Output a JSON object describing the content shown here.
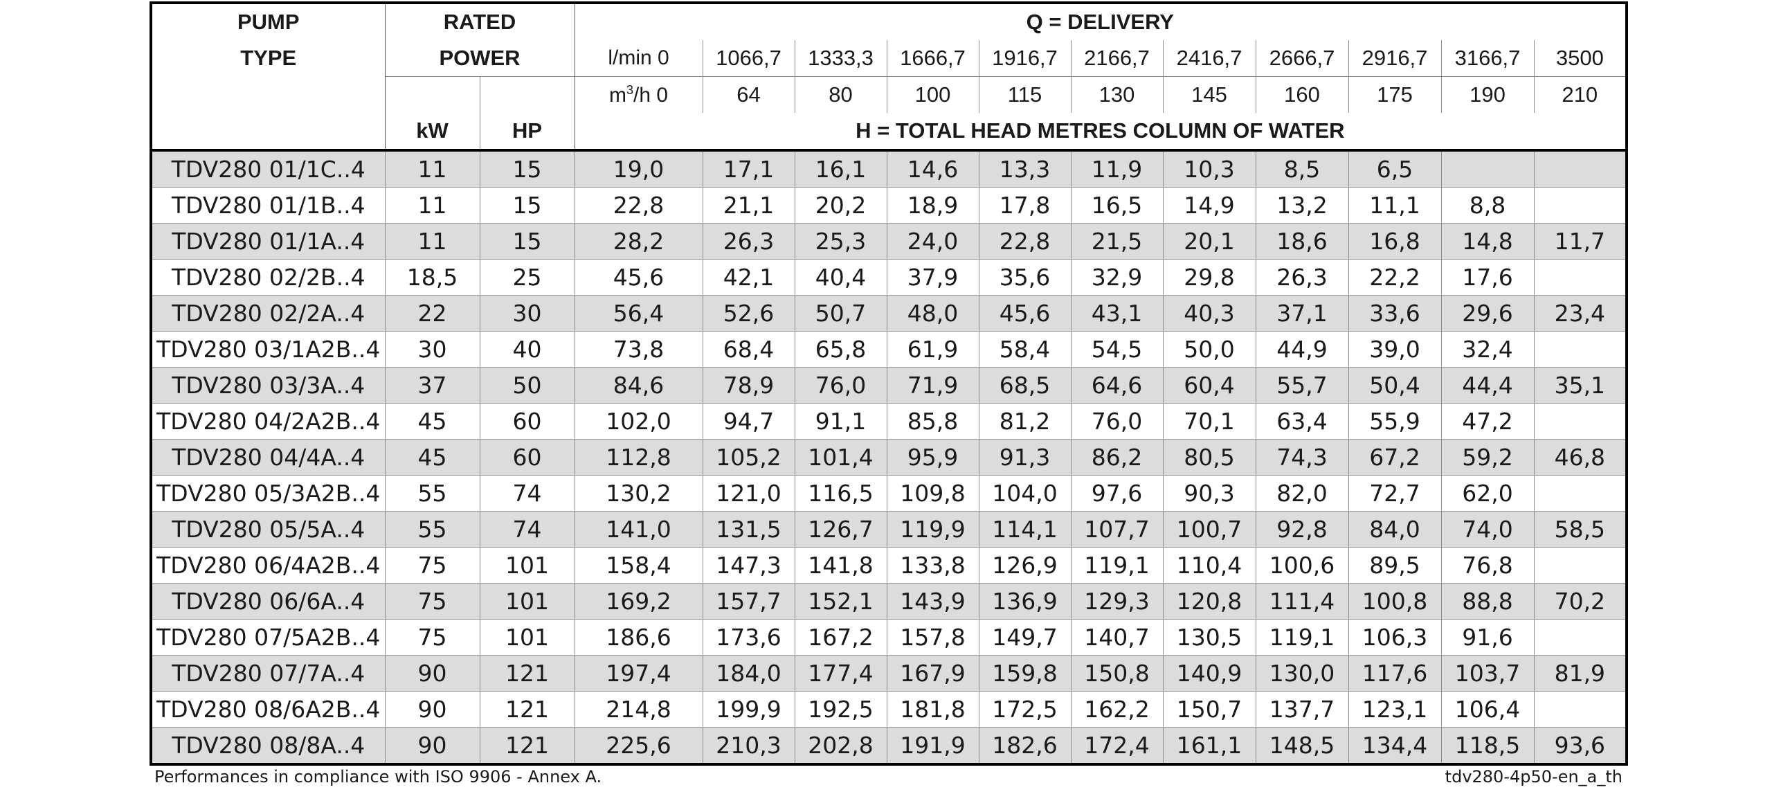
{
  "header": {
    "pump_type_line1": "PUMP",
    "pump_type_line2": "TYPE",
    "rated_line1": "RATED",
    "rated_line2": "POWER",
    "kw": "kW",
    "hp": "HP",
    "q_title": "Q = DELIVERY",
    "h_title": "H = TOTAL HEAD METRES COLUMN OF WATER",
    "lmin_label": "l/min 0",
    "m3h_label_pre": "m",
    "m3h_label_sup": "3",
    "m3h_label_post": "/h 0",
    "lmin": [
      "1066,7",
      "1333,3",
      "1666,7",
      "1916,7",
      "2166,7",
      "2416,7",
      "2666,7",
      "2916,7",
      "3166,7",
      "3500"
    ],
    "m3h": [
      "64",
      "80",
      "100",
      "115",
      "130",
      "145",
      "160",
      "175",
      "190",
      "210"
    ]
  },
  "rows": [
    {
      "type": "TDV280 01/1C..4",
      "kw": "11",
      "hp": "15",
      "h": [
        "19,0",
        "17,1",
        "16,1",
        "14,6",
        "13,3",
        "11,9",
        "10,3",
        "8,5",
        "6,5",
        "",
        ""
      ]
    },
    {
      "type": "TDV280 01/1B..4",
      "kw": "11",
      "hp": "15",
      "h": [
        "22,8",
        "21,1",
        "20,2",
        "18,9",
        "17,8",
        "16,5",
        "14,9",
        "13,2",
        "11,1",
        "8,8",
        ""
      ]
    },
    {
      "type": "TDV280 01/1A..4",
      "kw": "11",
      "hp": "15",
      "h": [
        "28,2",
        "26,3",
        "25,3",
        "24,0",
        "22,8",
        "21,5",
        "20,1",
        "18,6",
        "16,8",
        "14,8",
        "11,7"
      ]
    },
    {
      "type": "TDV280 02/2B..4",
      "kw": "18,5",
      "hp": "25",
      "h": [
        "45,6",
        "42,1",
        "40,4",
        "37,9",
        "35,6",
        "32,9",
        "29,8",
        "26,3",
        "22,2",
        "17,6",
        ""
      ]
    },
    {
      "type": "TDV280 02/2A..4",
      "kw": "22",
      "hp": "30",
      "h": [
        "56,4",
        "52,6",
        "50,7",
        "48,0",
        "45,6",
        "43,1",
        "40,3",
        "37,1",
        "33,6",
        "29,6",
        "23,4"
      ]
    },
    {
      "type": "TDV280 03/1A2B..4",
      "kw": "30",
      "hp": "40",
      "h": [
        "73,8",
        "68,4",
        "65,8",
        "61,9",
        "58,4",
        "54,5",
        "50,0",
        "44,9",
        "39,0",
        "32,4",
        ""
      ]
    },
    {
      "type": "TDV280 03/3A..4",
      "kw": "37",
      "hp": "50",
      "h": [
        "84,6",
        "78,9",
        "76,0",
        "71,9",
        "68,5",
        "64,6",
        "60,4",
        "55,7",
        "50,4",
        "44,4",
        "35,1"
      ]
    },
    {
      "type": "TDV280 04/2A2B..4",
      "kw": "45",
      "hp": "60",
      "h": [
        "102,0",
        "94,7",
        "91,1",
        "85,8",
        "81,2",
        "76,0",
        "70,1",
        "63,4",
        "55,9",
        "47,2",
        ""
      ]
    },
    {
      "type": "TDV280 04/4A..4",
      "kw": "45",
      "hp": "60",
      "h": [
        "112,8",
        "105,2",
        "101,4",
        "95,9",
        "91,3",
        "86,2",
        "80,5",
        "74,3",
        "67,2",
        "59,2",
        "46,8"
      ]
    },
    {
      "type": "TDV280 05/3A2B..4",
      "kw": "55",
      "hp": "74",
      "h": [
        "130,2",
        "121,0",
        "116,5",
        "109,8",
        "104,0",
        "97,6",
        "90,3",
        "82,0",
        "72,7",
        "62,0",
        ""
      ]
    },
    {
      "type": "TDV280 05/5A..4",
      "kw": "55",
      "hp": "74",
      "h": [
        "141,0",
        "131,5",
        "126,7",
        "119,9",
        "114,1",
        "107,7",
        "100,7",
        "92,8",
        "84,0",
        "74,0",
        "58,5"
      ]
    },
    {
      "type": "TDV280 06/4A2B..4",
      "kw": "75",
      "hp": "101",
      "h": [
        "158,4",
        "147,3",
        "141,8",
        "133,8",
        "126,9",
        "119,1",
        "110,4",
        "100,6",
        "89,5",
        "76,8",
        ""
      ]
    },
    {
      "type": "TDV280 06/6A..4",
      "kw": "75",
      "hp": "101",
      "h": [
        "169,2",
        "157,7",
        "152,1",
        "143,9",
        "136,9",
        "129,3",
        "120,8",
        "111,4",
        "100,8",
        "88,8",
        "70,2"
      ]
    },
    {
      "type": "TDV280 07/5A2B..4",
      "kw": "75",
      "hp": "101",
      "h": [
        "186,6",
        "173,6",
        "167,2",
        "157,8",
        "149,7",
        "140,7",
        "130,5",
        "119,1",
        "106,3",
        "91,6",
        ""
      ]
    },
    {
      "type": "TDV280 07/7A..4",
      "kw": "90",
      "hp": "121",
      "h": [
        "197,4",
        "184,0",
        "177,4",
        "167,9",
        "159,8",
        "150,8",
        "140,9",
        "130,0",
        "117,6",
        "103,7",
        "81,9"
      ]
    },
    {
      "type": "TDV280 08/6A2B..4",
      "kw": "90",
      "hp": "121",
      "h": [
        "214,8",
        "199,9",
        "192,5",
        "181,8",
        "172,5",
        "162,2",
        "150,7",
        "137,7",
        "123,1",
        "106,4",
        ""
      ]
    },
    {
      "type": "TDV280 08/8A..4",
      "kw": "90",
      "hp": "121",
      "h": [
        "225,6",
        "210,3",
        "202,8",
        "191,9",
        "182,6",
        "172,4",
        "161,1",
        "148,5",
        "134,4",
        "118,5",
        "93,6"
      ]
    }
  ],
  "footer": {
    "note": "Performances in compliance with ISO 9906 - Annex A.",
    "code": "tdv280-4p50-en_a_th"
  }
}
